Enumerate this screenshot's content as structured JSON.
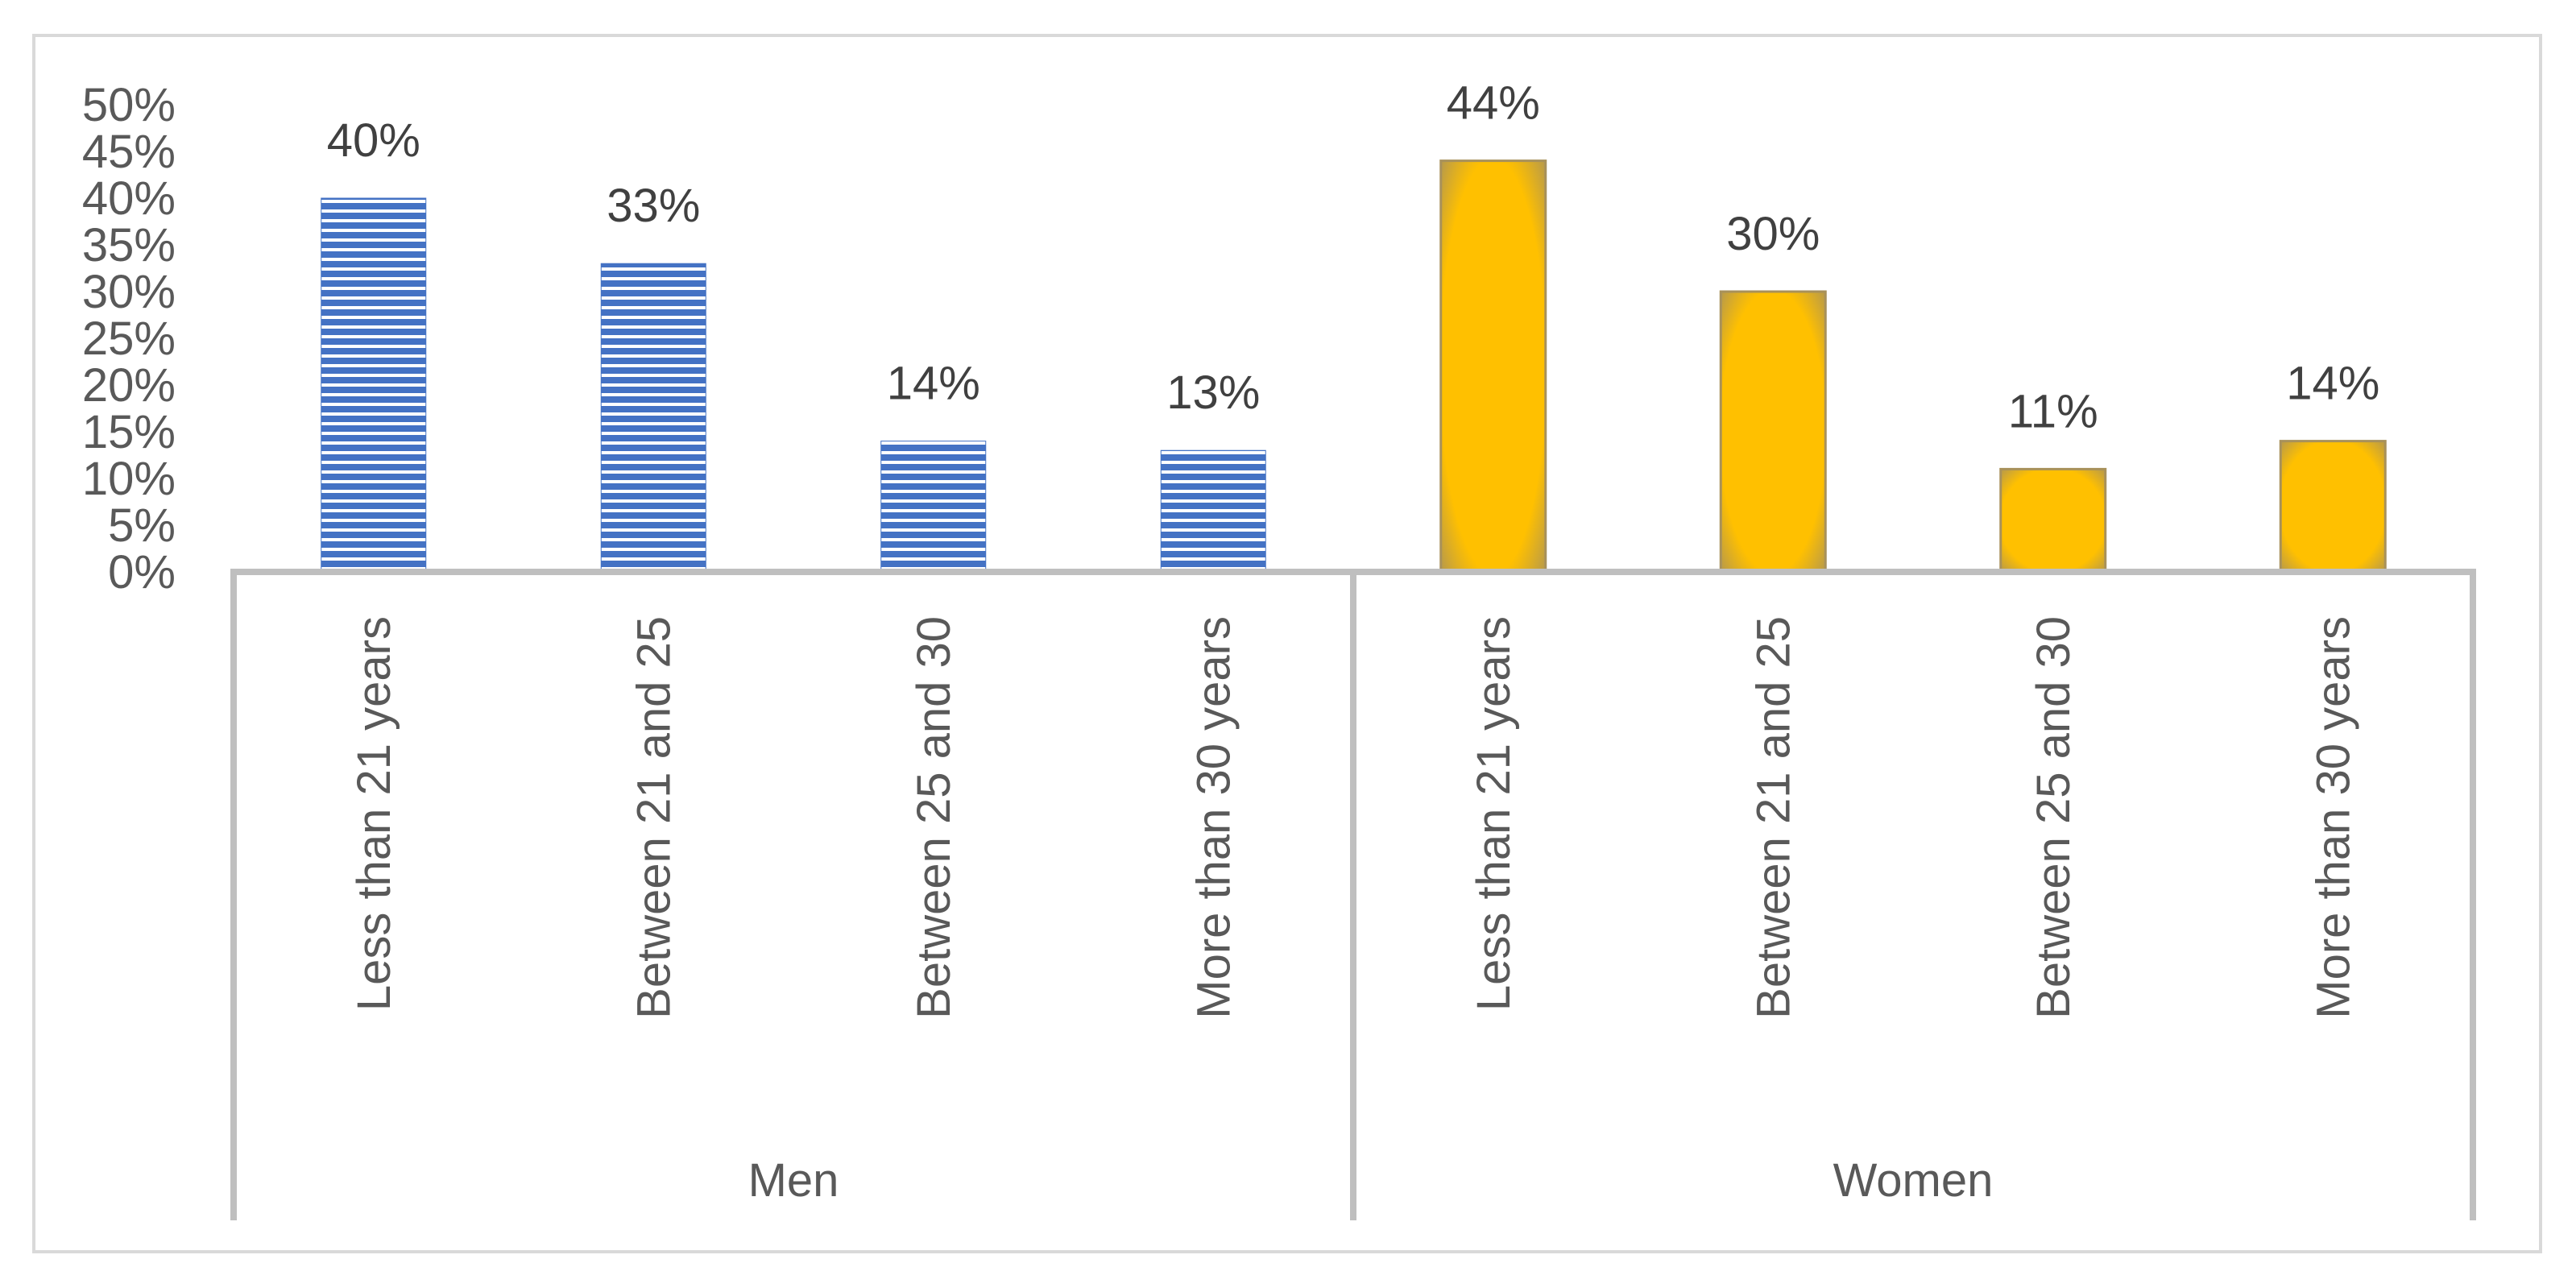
{
  "chart_data": {
    "type": "bar",
    "title": "",
    "xlabel": "",
    "ylabel": "",
    "ylim": [
      0,
      50
    ],
    "y_ticks": [
      "0%",
      "5%",
      "10%",
      "15%",
      "20%",
      "25%",
      "30%",
      "35%",
      "40%",
      "45%",
      "50%"
    ],
    "y_tick_values": [
      0,
      5,
      10,
      15,
      20,
      25,
      30,
      35,
      40,
      45,
      50
    ],
    "grid": false,
    "legend": "none",
    "groups": [
      {
        "label": "Men",
        "color": "#4472c4",
        "pattern": "horizontal-stripes",
        "categories": [
          "Less than 21 years",
          "Between 21 and 25",
          "Between 25 and 30",
          "More than 30 years"
        ],
        "values": [
          40,
          33,
          14,
          13
        ],
        "value_labels": [
          "40%",
          "33%",
          "14%",
          "13%"
        ]
      },
      {
        "label": "Women",
        "color": "#ffc000",
        "pattern": "solid-with-gray-glow",
        "categories": [
          "Less than 21 years",
          "Between 21 and 25",
          "Between 25 and 30",
          "More than 30 years"
        ],
        "values": [
          44,
          30,
          11,
          14
        ],
        "value_labels": [
          "44%",
          "30%",
          "11%",
          "14%"
        ]
      }
    ]
  },
  "colors": {
    "axis": "#bfbfbf",
    "frame": "#d9d9d9",
    "text": "#595959"
  }
}
